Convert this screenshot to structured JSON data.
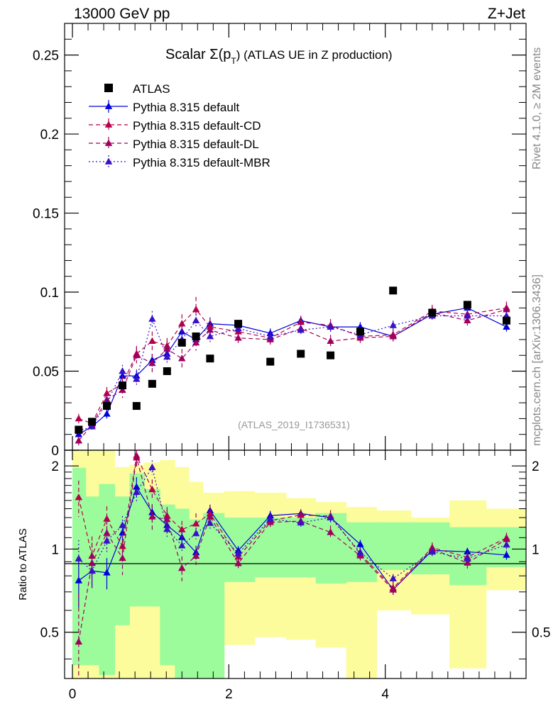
{
  "header": {
    "energy_label": "13000 GeV pp",
    "process_label": "Z+Jet"
  },
  "side_text": {
    "rivet": "Rivet 4.1.0, ≥ 2M events",
    "mcplots": "mcplots.cern.ch [arXiv:1306.3436]"
  },
  "colors": {
    "data": "#000000",
    "default": "#0000dd",
    "cd": "#b5004a",
    "dl": "#a0005e",
    "mbr": "#3a10c8",
    "band_green": "#9cfc9c",
    "band_yellow": "#fcfc9c"
  },
  "chart_data": {
    "type": "scatter",
    "title_prefix": "Scalar Σ(p",
    "title_sub": "T",
    "title_suffix": ") (ATLAS UE in Z production)",
    "analysis_tag": "(ATLAS_2019_I1736531)",
    "xlabel": "",
    "ylabel_ratio": "Ratio to ATLAS",
    "xlim": [
      -0.1,
      5.8
    ],
    "ylim": [
      0,
      0.27
    ],
    "ratio_ylim": [
      0.34,
      2.28
    ],
    "x_ticks": [
      "0",
      "2",
      "4"
    ],
    "y_ticks": [
      "0",
      "0.05",
      "0.1",
      "0.15",
      "0.2",
      "0.25"
    ],
    "ratio_ticks": [
      "0.5",
      "1",
      "2"
    ],
    "x": [
      0.08,
      0.25,
      0.44,
      0.64,
      0.82,
      1.02,
      1.21,
      1.4,
      1.58,
      1.76,
      2.12,
      2.53,
      2.92,
      3.3,
      3.68,
      4.1,
      4.6,
      5.05,
      5.55
    ],
    "bin_edges": [
      0.0,
      0.17,
      0.34,
      0.54,
      0.73,
      0.92,
      1.12,
      1.31,
      1.49,
      1.67,
      1.94,
      2.33,
      2.73,
      3.11,
      3.5,
      3.89,
      4.33,
      4.82,
      5.29,
      5.8
    ],
    "data": {
      "name": "ATLAS",
      "values": [
        0.013,
        0.018,
        0.028,
        0.041,
        0.028,
        0.042,
        0.05,
        0.068,
        0.072,
        0.058,
        0.08,
        0.056,
        0.061,
        0.06,
        0.075,
        0.101,
        0.087,
        0.092,
        0.082
      ]
    },
    "series": [
      {
        "name": "Pythia 8.315 default",
        "key": "default",
        "style": "solid",
        "values": [
          0.01,
          0.015,
          0.023,
          0.047,
          0.047,
          0.057,
          0.061,
          0.075,
          0.07,
          0.08,
          0.079,
          0.074,
          0.082,
          0.078,
          0.078,
          0.072,
          0.086,
          0.09,
          0.078
        ],
        "errors": [
          0.002,
          0.002,
          0.003,
          0.004,
          0.004,
          0.004,
          0.004,
          0.004,
          0.004,
          0.004,
          0.003,
          0.003,
          0.003,
          0.003,
          0.003,
          0.003,
          0.003,
          0.003,
          0.003
        ]
      },
      {
        "name": "Pythia 8.315 default-CD",
        "key": "cd",
        "style": "dashed",
        "values": [
          0.02,
          0.017,
          0.036,
          0.042,
          0.061,
          0.069,
          0.066,
          0.08,
          0.089,
          0.078,
          0.075,
          0.071,
          0.081,
          0.079,
          0.072,
          0.073,
          0.088,
          0.086,
          0.09
        ],
        "errors": [
          0.003,
          0.003,
          0.004,
          0.005,
          0.005,
          0.006,
          0.005,
          0.006,
          0.008,
          0.005,
          0.004,
          0.004,
          0.004,
          0.004,
          0.004,
          0.004,
          0.004,
          0.004,
          0.004
        ]
      },
      {
        "name": "Pythia 8.315 default-DL",
        "key": "dl",
        "style": "dashed",
        "values": [
          0.006,
          0.016,
          0.032,
          0.038,
          0.06,
          0.055,
          0.064,
          0.058,
          0.068,
          0.076,
          0.071,
          0.07,
          0.077,
          0.069,
          0.071,
          0.072,
          0.087,
          0.082,
          0.089
        ],
        "errors": [
          0.003,
          0.003,
          0.004,
          0.005,
          0.005,
          0.006,
          0.005,
          0.006,
          0.005,
          0.005,
          0.004,
          0.004,
          0.004,
          0.004,
          0.004,
          0.004,
          0.004,
          0.004,
          0.004
        ]
      },
      {
        "name": "Pythia 8.315 default-MBR",
        "key": "mbr",
        "style": "dotted",
        "values": [
          0.012,
          0.015,
          0.03,
          0.05,
          0.045,
          0.083,
          0.059,
          0.07,
          0.082,
          0.072,
          0.077,
          0.072,
          0.076,
          0.078,
          0.073,
          0.079,
          0.085,
          0.085,
          0.085
        ],
        "errors": [
          0.002,
          0.002,
          0.003,
          0.004,
          0.004,
          0.005,
          0.004,
          0.004,
          0.004,
          0.004,
          0.003,
          0.003,
          0.003,
          0.003,
          0.003,
          0.003,
          0.003,
          0.003,
          0.003
        ]
      }
    ],
    "ratio_band_green": [
      [
        0.38,
        1.97
      ],
      [
        0.38,
        1.55
      ],
      [
        0.35,
        1.72
      ],
      [
        0.53,
        1.55
      ],
      [
        0.62,
        1.88
      ],
      [
        0.62,
        1.65
      ],
      [
        0.38,
        1.45
      ],
      [
        0.34,
        1.4
      ],
      [
        0.34,
        1.28
      ],
      [
        0.34,
        1.35
      ],
      [
        0.76,
        1.3
      ],
      [
        0.79,
        1.3
      ],
      [
        0.79,
        1.3
      ],
      [
        0.75,
        1.35
      ],
      [
        0.76,
        1.25
      ],
      [
        0.84,
        1.25
      ],
      [
        0.81,
        1.25
      ],
      [
        0.74,
        1.2
      ],
      [
        0.86,
        1.2
      ]
    ],
    "ratio_band_yellow": [
      [
        0.34,
        2.28
      ],
      [
        0.34,
        2.28
      ],
      [
        0.34,
        2.28
      ],
      [
        0.34,
        1.98
      ],
      [
        0.34,
        2.02
      ],
      [
        0.34,
        2.06
      ],
      [
        0.34,
        2.1
      ],
      [
        0.34,
        1.98
      ],
      [
        0.34,
        1.75
      ],
      [
        0.34,
        1.6
      ],
      [
        0.45,
        1.62
      ],
      [
        0.48,
        1.6
      ],
      [
        0.47,
        1.53
      ],
      [
        0.44,
        1.48
      ],
      [
        0.34,
        1.42
      ],
      [
        0.6,
        1.38
      ],
      [
        0.58,
        1.3
      ],
      [
        0.37,
        1.5
      ],
      [
        0.71,
        1.4
      ]
    ]
  }
}
